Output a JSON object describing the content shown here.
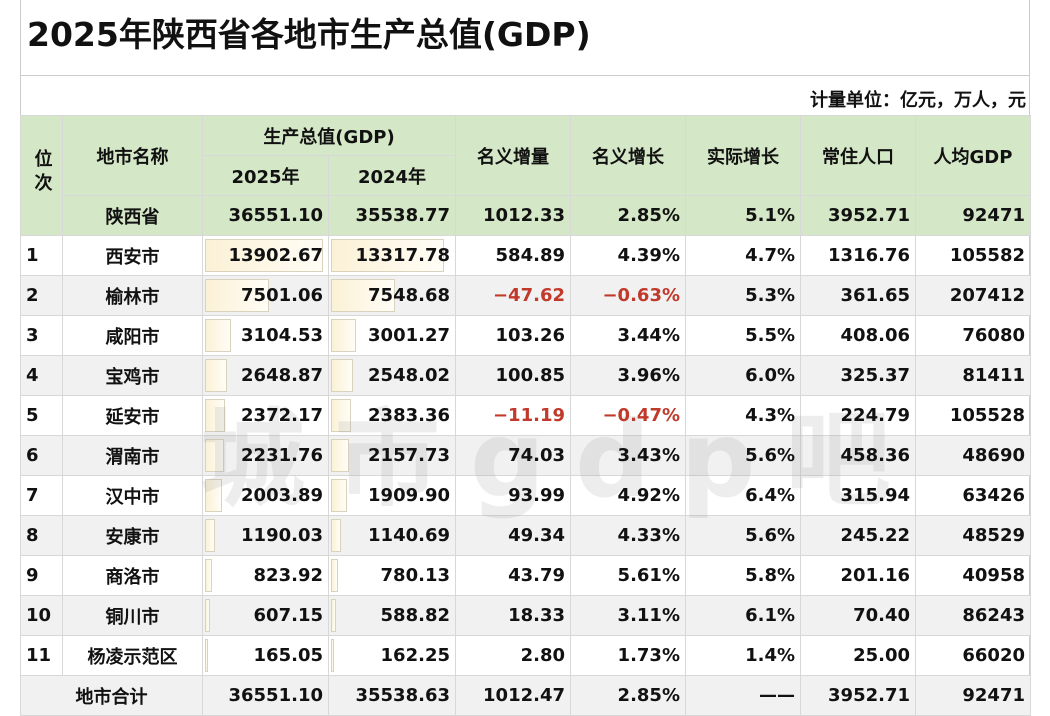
{
  "title": "2025年陕西省各地市生产总值(GDP)",
  "units": "计量单位：亿元，万人，元",
  "watermark": "城市gdp吧",
  "headers": {
    "rank": "位次",
    "name": "地市名称",
    "gdp": "生产总值(GDP)",
    "y2025": "2025年",
    "y2024": "2024年",
    "nominal_increase": "名义增量",
    "nominal_growth": "名义增长",
    "real_growth": "实际增长",
    "population": "常住人口",
    "per_capita": "人均GDP"
  },
  "province": {
    "name": "陕西省",
    "gdp2025": "36551.10",
    "gdp2024": "35538.77",
    "inc": "1012.33",
    "ng": "2.85%",
    "rg": "5.1%",
    "pop": "3952.71",
    "pc": "92471"
  },
  "rows": [
    {
      "rank": "1",
      "name": "西安市",
      "gdp2025": "13902.67",
      "gdp2024": "13317.78",
      "inc": "584.89",
      "ng": "4.39%",
      "rg": "4.7%",
      "pop": "1316.76",
      "pc": "105582"
    },
    {
      "rank": "2",
      "name": "榆林市",
      "gdp2025": "7501.06",
      "gdp2024": "7548.68",
      "inc": "−47.62",
      "ng": "−0.63%",
      "rg": "5.3%",
      "pop": "361.65",
      "pc": "207412",
      "negative": true
    },
    {
      "rank": "3",
      "name": "咸阳市",
      "gdp2025": "3104.53",
      "gdp2024": "3001.27",
      "inc": "103.26",
      "ng": "3.44%",
      "rg": "5.5%",
      "pop": "408.06",
      "pc": "76080"
    },
    {
      "rank": "4",
      "name": "宝鸡市",
      "gdp2025": "2648.87",
      "gdp2024": "2548.02",
      "inc": "100.85",
      "ng": "3.96%",
      "rg": "6.0%",
      "pop": "325.37",
      "pc": "81411"
    },
    {
      "rank": "5",
      "name": "延安市",
      "gdp2025": "2372.17",
      "gdp2024": "2383.36",
      "inc": "−11.19",
      "ng": "−0.47%",
      "rg": "4.3%",
      "pop": "224.79",
      "pc": "105528",
      "negative": true
    },
    {
      "rank": "6",
      "name": "渭南市",
      "gdp2025": "2231.76",
      "gdp2024": "2157.73",
      "inc": "74.03",
      "ng": "3.43%",
      "rg": "5.6%",
      "pop": "458.36",
      "pc": "48690"
    },
    {
      "rank": "7",
      "name": "汉中市",
      "gdp2025": "2003.89",
      "gdp2024": "1909.90",
      "inc": "93.99",
      "ng": "4.92%",
      "rg": "6.4%",
      "pop": "315.94",
      "pc": "63426"
    },
    {
      "rank": "8",
      "name": "安康市",
      "gdp2025": "1190.03",
      "gdp2024": "1140.69",
      "inc": "49.34",
      "ng": "4.33%",
      "rg": "5.6%",
      "pop": "245.22",
      "pc": "48529"
    },
    {
      "rank": "9",
      "name": "商洛市",
      "gdp2025": "823.92",
      "gdp2024": "780.13",
      "inc": "43.79",
      "ng": "5.61%",
      "rg": "5.8%",
      "pop": "201.16",
      "pc": "40958"
    },
    {
      "rank": "10",
      "name": "铜川市",
      "gdp2025": "607.15",
      "gdp2024": "588.82",
      "inc": "18.33",
      "ng": "3.11%",
      "rg": "6.1%",
      "pop": "70.40",
      "pc": "86243"
    },
    {
      "rank": "11",
      "name": "杨凌示范区",
      "gdp2025": "165.05",
      "gdp2024": "162.25",
      "inc": "2.80",
      "ng": "1.73%",
      "rg": "1.4%",
      "pop": "25.00",
      "pc": "66020"
    }
  ],
  "total": {
    "name": "地市合计",
    "gdp2025": "36551.10",
    "gdp2024": "35538.63",
    "inc": "1012.47",
    "ng": "2.85%",
    "rg": "——",
    "pop": "3952.71",
    "pc": "92471"
  }
}
